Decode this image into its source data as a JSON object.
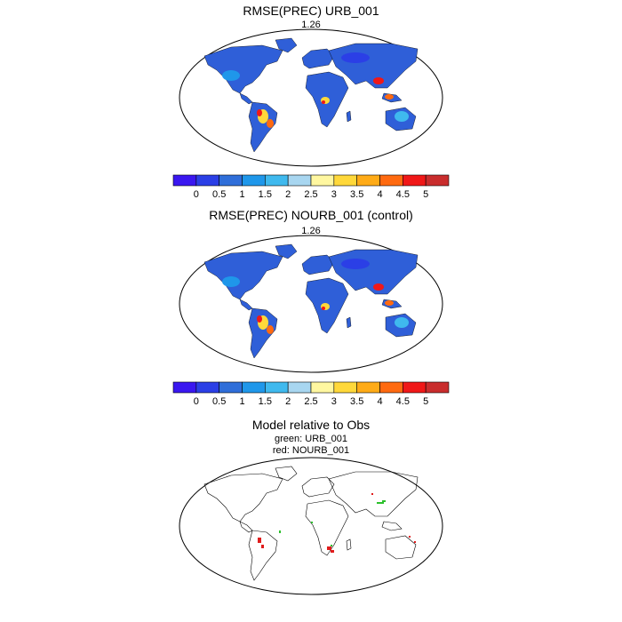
{
  "panel1": {
    "title": "RMSE(PREC) URB_001",
    "value": "1.26"
  },
  "panel2": {
    "title": "RMSE(PREC) NOURB_001 (control)",
    "value": "1.26"
  },
  "panel3": {
    "title": "Model relative to Obs",
    "line1": "green: URB_001",
    "line2": "red: NOURB_001"
  },
  "colorbar": {
    "labels": [
      "0",
      "0.5",
      "1",
      "1.5",
      "2",
      "2.5",
      "3",
      "3.5",
      "4",
      "4.5",
      "5"
    ],
    "colors": [
      "#3a17f0",
      "#2b3fe6",
      "#2f6ed9",
      "#1f97ea",
      "#3fb9ee",
      "#a8d6f0",
      "#fff7a0",
      "#ffd83a",
      "#ffab17",
      "#ff6a10",
      "#f01818",
      "#c92d2d"
    ]
  },
  "colors": {
    "land_low": "#2f5fd8",
    "land_mid": "#3fb9ee",
    "land_hi": "#f01818",
    "urb": "#2cc02c",
    "nourb": "#e01c1c"
  }
}
